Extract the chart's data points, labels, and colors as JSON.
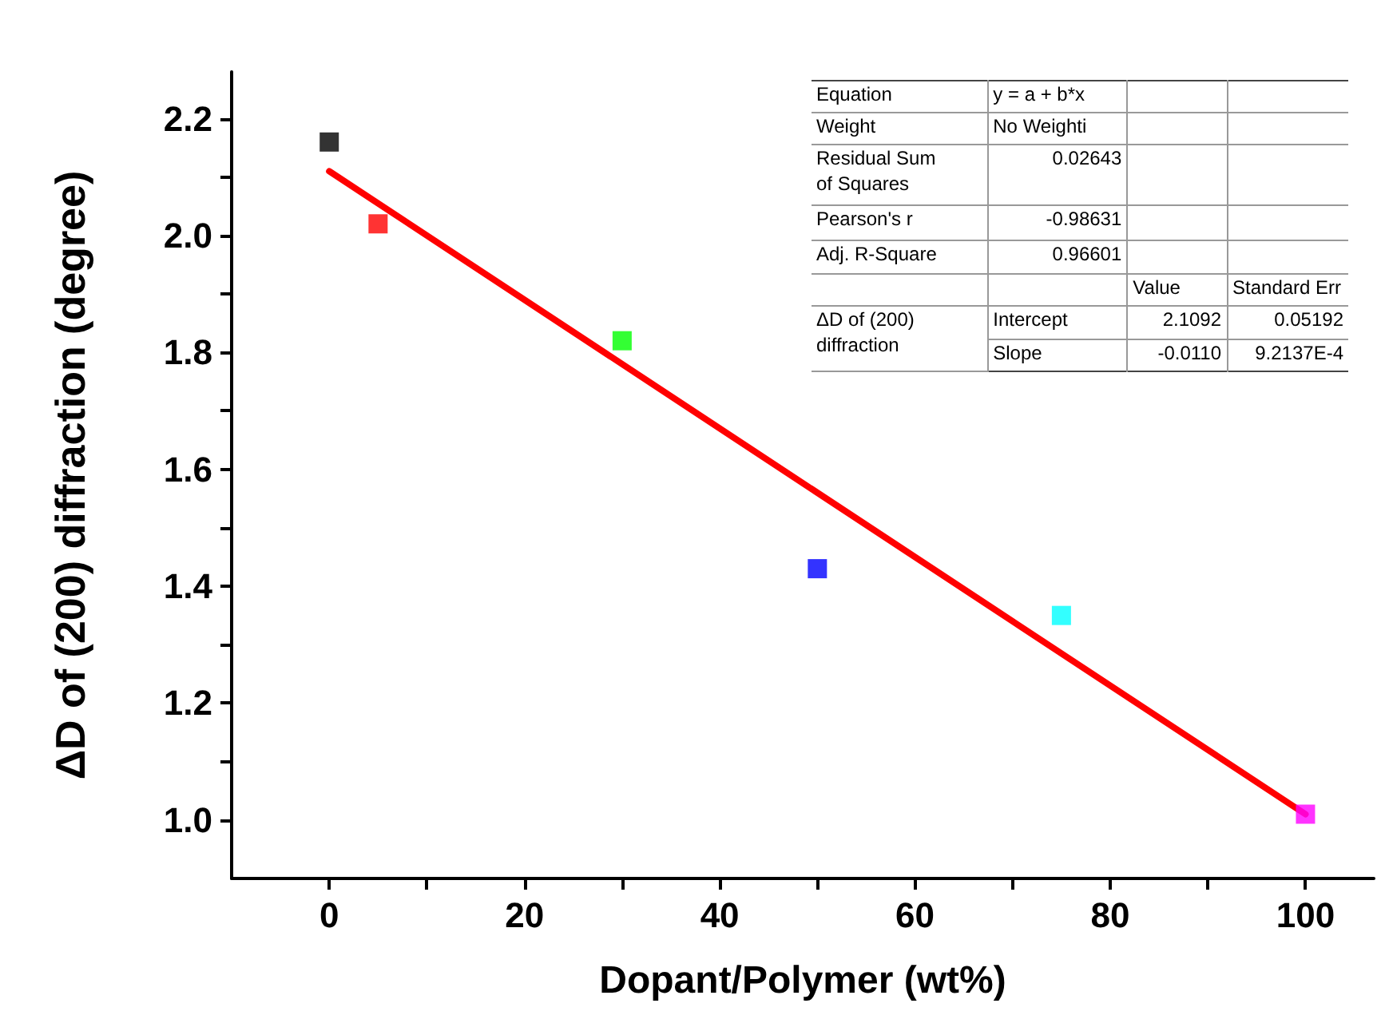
{
  "chart_data": {
    "type": "scatter",
    "xlabel": "Dopant/Polymer (wt%)",
    "ylabel": "ΔD of (200) diffraction (degree)",
    "xlim": [
      -10,
      107
    ],
    "ylim": [
      0.9,
      2.28
    ],
    "xticks": [
      0,
      20,
      40,
      60,
      80,
      100,
      {
        "value": 10,
        "label": null
      },
      {
        "value": 30,
        "label": null
      },
      {
        "value": 50,
        "label": null
      },
      {
        "value": 70,
        "label": null
      },
      {
        "value": 90,
        "label": null
      }
    ],
    "yticks": [
      {
        "value": 1.0,
        "label": "1.0"
      },
      {
        "value": 1.2,
        "label": "1.2"
      },
      {
        "value": 1.4,
        "label": "1.4"
      },
      {
        "value": 1.6,
        "label": "1.6"
      },
      {
        "value": 1.8,
        "label": "1.8"
      },
      {
        "value": 2.0,
        "label": "2.0"
      },
      {
        "value": 2.2,
        "label": "2.2"
      },
      {
        "value": 1.1,
        "label": null
      },
      {
        "value": 1.3,
        "label": null
      },
      {
        "value": 1.5,
        "label": null
      },
      {
        "value": 1.7,
        "label": null
      },
      {
        "value": 1.9,
        "label": null
      },
      {
        "value": 2.1,
        "label": null
      }
    ],
    "grid": false,
    "marker": "square",
    "series": [
      {
        "type": "scatter",
        "x": [
          0,
          5,
          30,
          50,
          75,
          100
        ],
        "values": [
          2.16,
          2.02,
          1.82,
          1.43,
          1.35,
          1.01
        ],
        "colors": [
          "#000000",
          "#ff0000",
          "#00ff00",
          "#0000ff",
          "#00ffff",
          "#ff00ff"
        ]
      },
      {
        "type": "line",
        "marker": "none",
        "color": "#ff0000",
        "x": [
          0,
          100
        ],
        "values": [
          2.11,
          1.01
        ]
      }
    ],
    "annotations": [
      "Equation",
      "y = a + b*x",
      "Weight",
      "No Weighti",
      "Residual Sum\nof Squares",
      "0.02643",
      "Pearson's r",
      "-0.98631",
      "Adj. R-Square",
      "0.96601",
      "Value",
      "Standard Err",
      "ΔD of (200)\ndiffraction",
      "Intercept",
      "2.1092",
      "0.05192",
      "Slope",
      "-0.0110",
      "9.2137E-4"
    ]
  }
}
